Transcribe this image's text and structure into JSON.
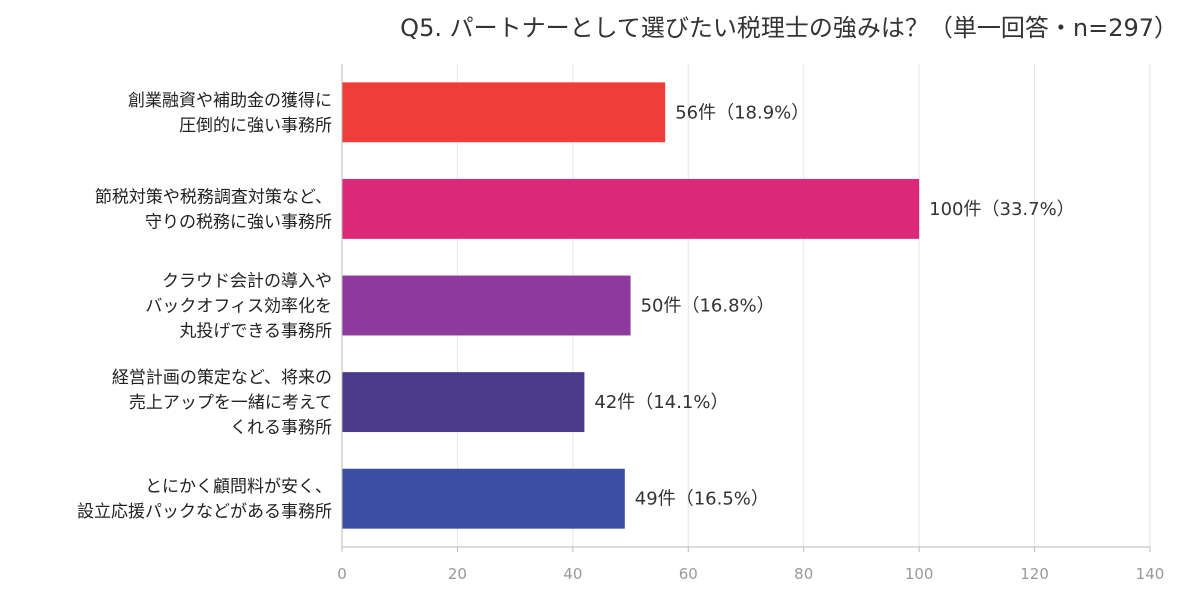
{
  "chart_data": {
    "type": "bar",
    "orientation": "horizontal",
    "title": "Q5. パートナーとして選びたい税理士の強みは？（単一回答・n=297）",
    "categories": [
      [
        "創業融資や補助金の獲得に",
        "圧倒的に強い事務所"
      ],
      [
        "節税対策や税務調査対策など、",
        "守りの税務に強い事務所"
      ],
      [
        "クラウド会計の導入や",
        "バックオフィス効率化を",
        "丸投げできる事務所"
      ],
      [
        "経営計画の策定など、将来の",
        "売上アップを一緒に考えて",
        "くれる事務所"
      ],
      [
        "とにかく顧問料が安く、",
        "設立応援パックなどがある事務所"
      ]
    ],
    "values": [
      56,
      100,
      50,
      42,
      49
    ],
    "data_labels": [
      "56件（18.9%）",
      "100件（33.7%）",
      "50件（16.8%）",
      "42件（14.1%）",
      "49件（16.5%）"
    ],
    "colors": [
      "#ef3e3a",
      "#dc2878",
      "#8e3a9c",
      "#4a3a8c",
      "#3a4fa2"
    ],
    "xlim": [
      0,
      140
    ],
    "xticks": [
      0,
      20,
      40,
      60,
      80,
      100,
      120,
      140
    ],
    "grid": true,
    "legend": "none"
  }
}
